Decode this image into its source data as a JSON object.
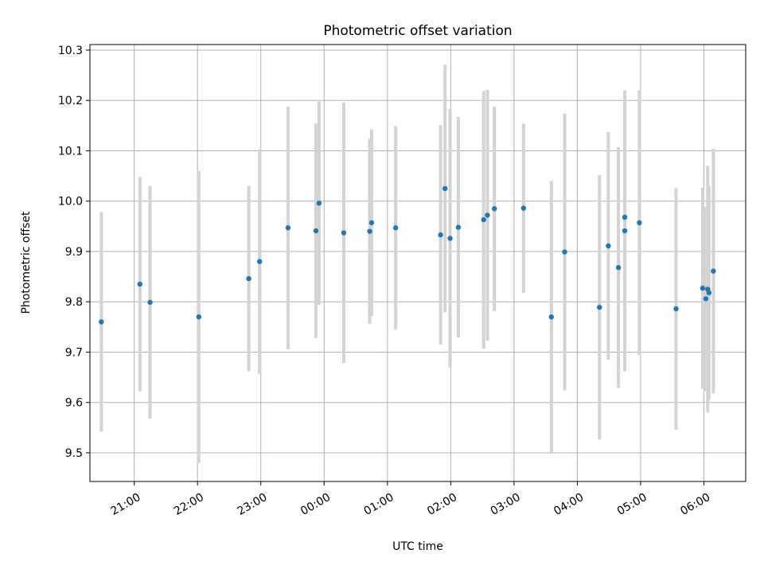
{
  "chart_data": {
    "type": "scatter",
    "title": "Photometric offset variation",
    "xlabel": "UTC time",
    "ylabel": "Photometric offset",
    "x_unit": "hours",
    "x_range": [
      20.3,
      30.66
    ],
    "ylim": [
      9.443,
      10.311
    ],
    "grid": true,
    "x_ticks": [
      {
        "value": 21,
        "label": "21:00"
      },
      {
        "value": 22,
        "label": "22:00"
      },
      {
        "value": 23,
        "label": "23:00"
      },
      {
        "value": 24,
        "label": "00:00"
      },
      {
        "value": 25,
        "label": "01:00"
      },
      {
        "value": 26,
        "label": "02:00"
      },
      {
        "value": 27,
        "label": "03:00"
      },
      {
        "value": 28,
        "label": "04:00"
      },
      {
        "value": 29,
        "label": "05:00"
      },
      {
        "value": 30,
        "label": "06:00"
      }
    ],
    "y_ticks": [
      {
        "value": 9.5,
        "label": "9.5"
      },
      {
        "value": 9.6,
        "label": "9.6"
      },
      {
        "value": 9.7,
        "label": "9.7"
      },
      {
        "value": 9.8,
        "label": "9.8"
      },
      {
        "value": 9.9,
        "label": "9.9"
      },
      {
        "value": 10.0,
        "label": "10.0"
      },
      {
        "value": 10.1,
        "label": "10.1"
      },
      {
        "value": 10.2,
        "label": "10.2"
      },
      {
        "value": 10.3,
        "label": "10.3"
      }
    ],
    "colors": {
      "points": "#1f77b4",
      "errorbars": "#d3d3d3",
      "grid": "#b0b0b0"
    },
    "points": [
      {
        "x": 20.48,
        "y": 9.76,
        "err": 0.218
      },
      {
        "x": 21.09,
        "y": 9.835,
        "err": 0.213
      },
      {
        "x": 21.25,
        "y": 9.799,
        "err": 0.231
      },
      {
        "x": 22.02,
        "y": 9.77,
        "err": 0.29
      },
      {
        "x": 22.81,
        "y": 9.846,
        "err": 0.184
      },
      {
        "x": 22.98,
        "y": 9.88,
        "err": 0.223
      },
      {
        "x": 23.43,
        "y": 9.947,
        "err": 0.241
      },
      {
        "x": 23.87,
        "y": 9.941,
        "err": 0.213
      },
      {
        "x": 23.92,
        "y": 9.996,
        "err": 0.202
      },
      {
        "x": 24.31,
        "y": 9.937,
        "err": 0.259
      },
      {
        "x": 24.72,
        "y": 9.94,
        "err": 0.184
      },
      {
        "x": 24.75,
        "y": 9.957,
        "err": 0.185
      },
      {
        "x": 25.13,
        "y": 9.947,
        "err": 0.202
      },
      {
        "x": 25.84,
        "y": 9.933,
        "err": 0.218
      },
      {
        "x": 25.91,
        "y": 10.025,
        "err": 0.246
      },
      {
        "x": 25.99,
        "y": 9.926,
        "err": 0.257
      },
      {
        "x": 26.12,
        "y": 9.948,
        "err": 0.219
      },
      {
        "x": 26.52,
        "y": 9.963,
        "err": 0.256
      },
      {
        "x": 26.58,
        "y": 9.972,
        "err": 0.249
      },
      {
        "x": 26.69,
        "y": 9.985,
        "err": 0.203
      },
      {
        "x": 27.15,
        "y": 9.986,
        "err": 0.168
      },
      {
        "x": 27.59,
        "y": 9.77,
        "err": 0.27
      },
      {
        "x": 27.8,
        "y": 9.899,
        "err": 0.275
      },
      {
        "x": 28.35,
        "y": 9.789,
        "err": 0.263
      },
      {
        "x": 28.49,
        "y": 9.911,
        "err": 0.226
      },
      {
        "x": 28.65,
        "y": 9.868,
        "err": 0.239
      },
      {
        "x": 28.75,
        "y": 9.968,
        "err": 0.252
      },
      {
        "x": 28.75,
        "y": 9.941,
        "err": 0.279
      },
      {
        "x": 28.98,
        "y": 9.957,
        "err": 0.263
      },
      {
        "x": 29.56,
        "y": 9.786,
        "err": 0.24
      },
      {
        "x": 29.98,
        "y": 9.827,
        "err": 0.2
      },
      {
        "x": 30.03,
        "y": 9.806,
        "err": 0.183
      },
      {
        "x": 30.06,
        "y": 9.825,
        "err": 0.245
      },
      {
        "x": 30.08,
        "y": 9.818,
        "err": 0.212
      },
      {
        "x": 30.15,
        "y": 9.861,
        "err": 0.243
      }
    ]
  }
}
